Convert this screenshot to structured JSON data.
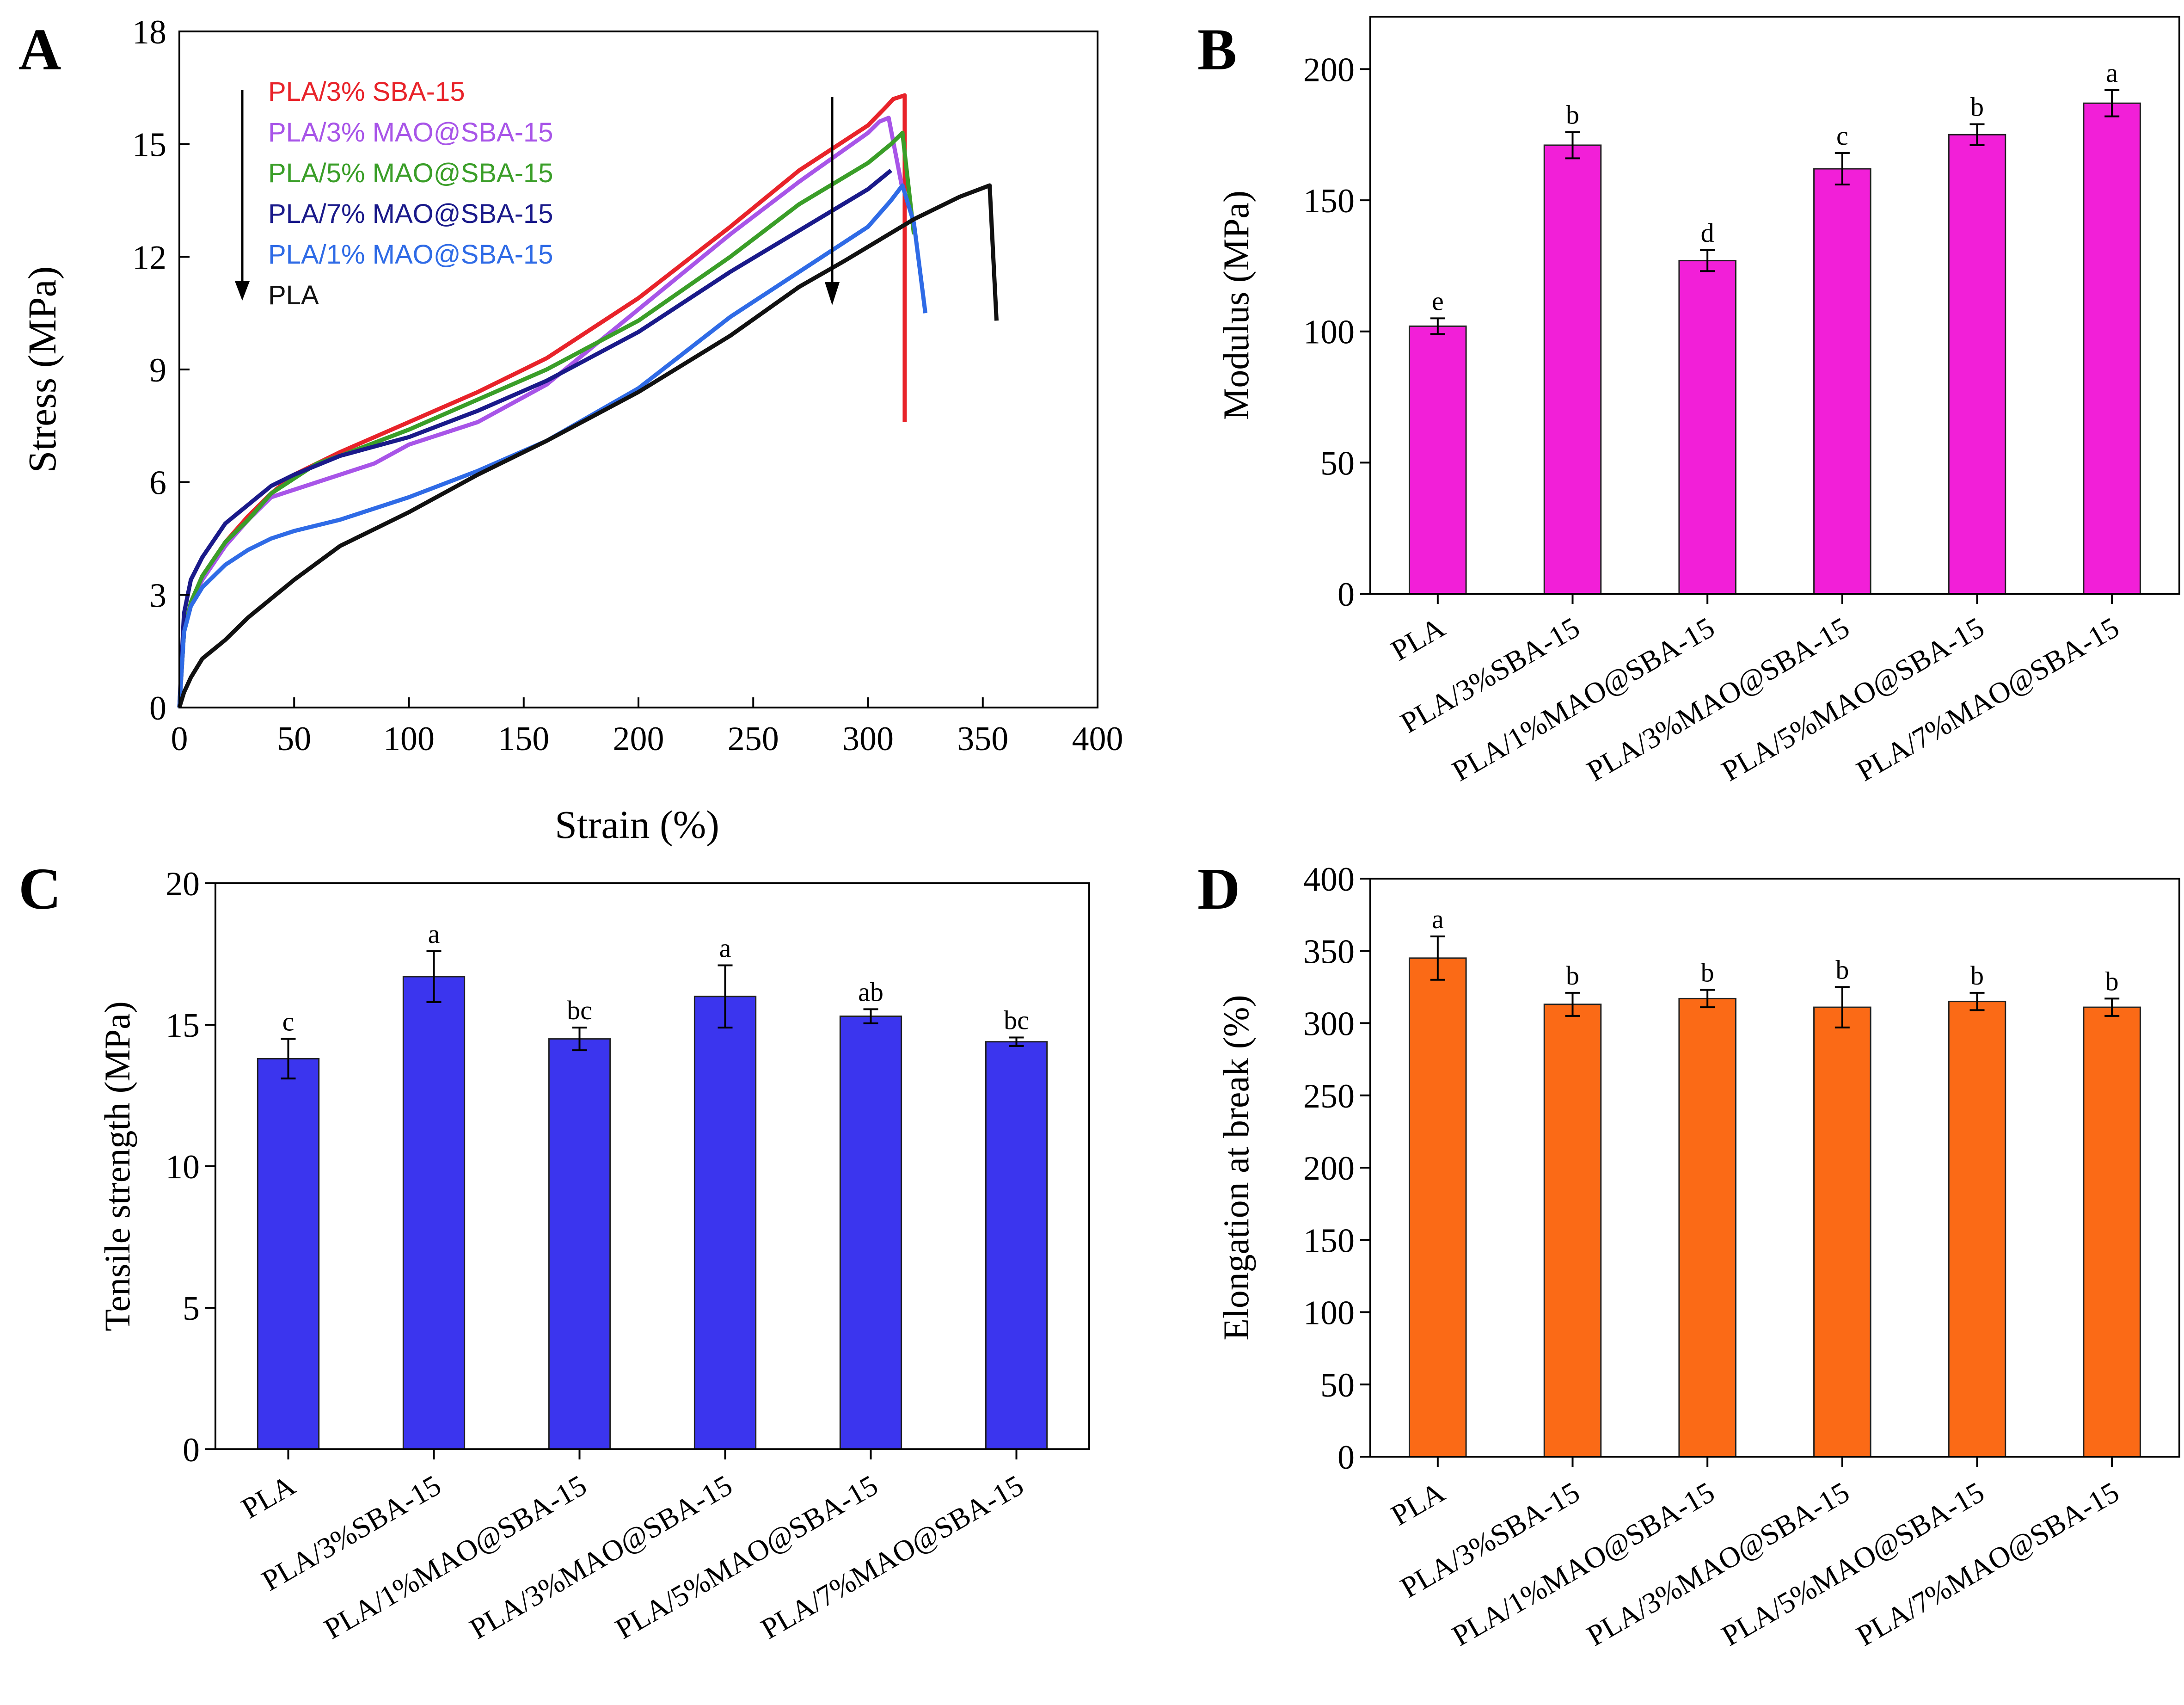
{
  "panels": {
    "A": "A",
    "B": "B",
    "C": "C",
    "D": "D"
  },
  "chart_data": [
    {
      "id": "A",
      "type": "line",
      "title": "",
      "xlabel": "Strain (%)",
      "ylabel": "Stress (MPa)",
      "xlim": [
        0,
        400
      ],
      "ylim": [
        0,
        18
      ],
      "xticks": [
        0,
        50,
        100,
        150,
        200,
        250,
        300,
        350,
        400
      ],
      "yticks": [
        0,
        3,
        6,
        9,
        12,
        15,
        18
      ],
      "legend_position": "top-left",
      "series": [
        {
          "name": "PLA/3% SBA-15",
          "color": "#e8232a",
          "x": [
            0,
            2,
            5,
            10,
            20,
            30,
            40,
            50,
            60,
            70,
            100,
            130,
            160,
            200,
            240,
            270,
            300,
            308,
            311,
            316,
            316
          ],
          "y": [
            0,
            2.0,
            2.8,
            3.5,
            4.4,
            5.1,
            5.7,
            6.2,
            6.5,
            6.8,
            7.6,
            8.4,
            9.3,
            10.9,
            12.8,
            14.3,
            15.5,
            16.0,
            16.2,
            16.3,
            7.6
          ]
        },
        {
          "name": "PLA/3% MAO@SBA-15",
          "color": "#a855e8",
          "x": [
            0,
            2,
            5,
            10,
            20,
            30,
            40,
            60,
            85,
            100,
            130,
            160,
            200,
            240,
            270,
            300,
            305,
            309,
            315
          ],
          "y": [
            0,
            2.0,
            2.8,
            3.4,
            4.3,
            5.0,
            5.6,
            6.0,
            6.5,
            7.0,
            7.6,
            8.6,
            10.6,
            12.6,
            14.0,
            15.3,
            15.6,
            15.7,
            13.8
          ]
        },
        {
          "name": "PLA/5% MAO@SBA-15",
          "color": "#3a9e28",
          "x": [
            0,
            2,
            5,
            10,
            20,
            30,
            40,
            50,
            60,
            70,
            100,
            130,
            160,
            200,
            240,
            270,
            300,
            310,
            315,
            320
          ],
          "y": [
            0,
            2.0,
            2.8,
            3.5,
            4.4,
            5.0,
            5.7,
            6.1,
            6.5,
            6.7,
            7.4,
            8.2,
            9.0,
            10.3,
            12.0,
            13.4,
            14.5,
            15.0,
            15.3,
            12.6
          ]
        },
        {
          "name": "PLA/7% MAO@SBA-15",
          "color": "#1a1a8a",
          "x": [
            0,
            2,
            5,
            10,
            20,
            30,
            40,
            50,
            70,
            100,
            130,
            160,
            200,
            240,
            270,
            300,
            310
          ],
          "y": [
            0,
            2.5,
            3.4,
            4.0,
            4.9,
            5.4,
            5.9,
            6.2,
            6.7,
            7.2,
            7.9,
            8.7,
            10.0,
            11.6,
            12.7,
            13.8,
            14.3
          ]
        },
        {
          "name": "PLA/1% MAO@SBA-15",
          "color": "#2f6be6",
          "x": [
            0,
            2,
            5,
            10,
            20,
            30,
            40,
            50,
            70,
            100,
            130,
            160,
            200,
            240,
            270,
            300,
            310,
            315,
            320,
            325
          ],
          "y": [
            0,
            2.0,
            2.7,
            3.2,
            3.8,
            4.2,
            4.5,
            4.7,
            5.0,
            5.6,
            6.3,
            7.1,
            8.5,
            10.4,
            11.6,
            12.8,
            13.5,
            13.9,
            12.9,
            10.5
          ]
        },
        {
          "name": "PLA",
          "color": "#111111",
          "x": [
            0,
            2,
            5,
            10,
            20,
            30,
            40,
            50,
            70,
            100,
            130,
            160,
            200,
            240,
            270,
            290,
            320,
            340,
            353,
            356
          ],
          "y": [
            0,
            0.4,
            0.8,
            1.3,
            1.8,
            2.4,
            2.9,
            3.4,
            4.3,
            5.2,
            6.2,
            7.1,
            8.4,
            9.9,
            11.2,
            11.9,
            13.0,
            13.6,
            13.9,
            10.3
          ]
        }
      ]
    },
    {
      "id": "B",
      "type": "bar",
      "ylabel": "Modulus (MPa)",
      "ylim": [
        0,
        220
      ],
      "yticks": [
        0,
        50,
        100,
        150,
        200
      ],
      "color": "#f21fd8",
      "categories": [
        "PLA",
        "PLA/3%SBA-15",
        "PLA/1%MAO@SBA-15",
        "PLA/3%MAO@SBA-15",
        "PLA/5%MAO@SBA-15",
        "PLA/7%MAO@SBA-15"
      ],
      "values": [
        102,
        171,
        127,
        162,
        175,
        187
      ],
      "errors": [
        3,
        5,
        4,
        6,
        4,
        5
      ],
      "labels": [
        "e",
        "b",
        "d",
        "c",
        "b",
        "a"
      ]
    },
    {
      "id": "C",
      "type": "bar",
      "ylabel": "Tensile strength (MPa)",
      "ylim": [
        0,
        20
      ],
      "yticks": [
        0,
        5,
        10,
        15,
        20
      ],
      "color": "#3b35ee",
      "categories": [
        "PLA",
        "PLA/3%SBA-15",
        "PLA/1%MAO@SBA-15",
        "PLA/3%MAO@SBA-15",
        "PLA/5%MAO@SBA-15",
        "PLA/7%MAO@SBA-15"
      ],
      "values": [
        13.8,
        16.7,
        14.5,
        16.0,
        15.3,
        14.4
      ],
      "errors": [
        0.7,
        0.9,
        0.4,
        1.1,
        0.25,
        0.15
      ],
      "labels": [
        "c",
        "a",
        "bc",
        "a",
        "ab",
        "bc"
      ]
    },
    {
      "id": "D",
      "type": "bar",
      "ylabel": "Elongation at break (%)",
      "ylim": [
        0,
        400
      ],
      "yticks": [
        0,
        50,
        100,
        150,
        200,
        250,
        300,
        350,
        400
      ],
      "color": "#fb6a16",
      "categories": [
        "PLA",
        "PLA/3%SBA-15",
        "PLA/1%MAO@SBA-15",
        "PLA/3%MAO@SBA-15",
        "PLA/5%MAO@SBA-15",
        "PLA/7%MAO@SBA-15"
      ],
      "values": [
        345,
        313,
        317,
        311,
        315,
        311
      ],
      "errors": [
        15,
        8,
        6,
        14,
        6,
        6
      ],
      "labels": [
        "a",
        "b",
        "b",
        "b",
        "b",
        "b"
      ]
    }
  ]
}
